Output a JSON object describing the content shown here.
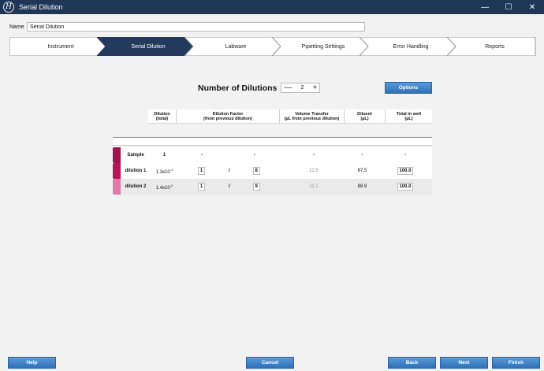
{
  "window": {
    "title": "Serial Dilution",
    "logo_letter": "H",
    "minimize": "—",
    "maximize": "☐",
    "close": "✕"
  },
  "name_field": {
    "label": "Name",
    "value": "Serial Dilution"
  },
  "steps": [
    {
      "label": "Instrument",
      "active": false
    },
    {
      "label": "Serial Dilution",
      "active": true
    },
    {
      "label": "Labware",
      "active": false
    },
    {
      "label": "Pipetting Settings",
      "active": false
    },
    {
      "label": "Error Handling",
      "active": false
    },
    {
      "label": "Reports",
      "active": false
    }
  ],
  "dilutions": {
    "title": "Number of Dilutions",
    "count": "2",
    "minus": "—",
    "plus": "+",
    "options_label": "Options"
  },
  "table": {
    "headers": {
      "dilution": [
        "Dilution",
        "(total)"
      ],
      "factor": [
        "Dilution Factor",
        "(from previous dilution)"
      ],
      "volume": [
        "Volume Transfer",
        "(µL from previous dilution)"
      ],
      "diluent": [
        "Diluent",
        "(µL)"
      ],
      "total": [
        "Total in well",
        "(µL)"
      ]
    },
    "rows": [
      {
        "name": "Sample",
        "total": "1",
        "factor_a": "-",
        "factor_b": "-",
        "volume": "-",
        "diluent": "-",
        "well": "-",
        "color": "#a5104f"
      },
      {
        "name": "dilution 1",
        "total_base": "1.3x10",
        "total_exp": "-1",
        "factor_a": "1",
        "slash": "/",
        "factor_b": "8",
        "volume": "12.5",
        "diluent": "87.5",
        "well": "100.0",
        "color": "#b8125a"
      },
      {
        "name": "dilution 2",
        "total_base": "1.4x10",
        "total_exp": "-2",
        "factor_a": "1",
        "slash": "/",
        "factor_b": "9",
        "volume": "11.1",
        "diluent": "88.9",
        "well": "100.0",
        "color": "#e07aac"
      }
    ]
  },
  "buttons": {
    "help": "Help",
    "cancel": "Cancel",
    "back": "Back",
    "next": "Next",
    "finish": "Finish"
  },
  "colors": {
    "titlebar": "#1f3656",
    "active_step": "#233a5e",
    "button": "#3f84c8"
  }
}
